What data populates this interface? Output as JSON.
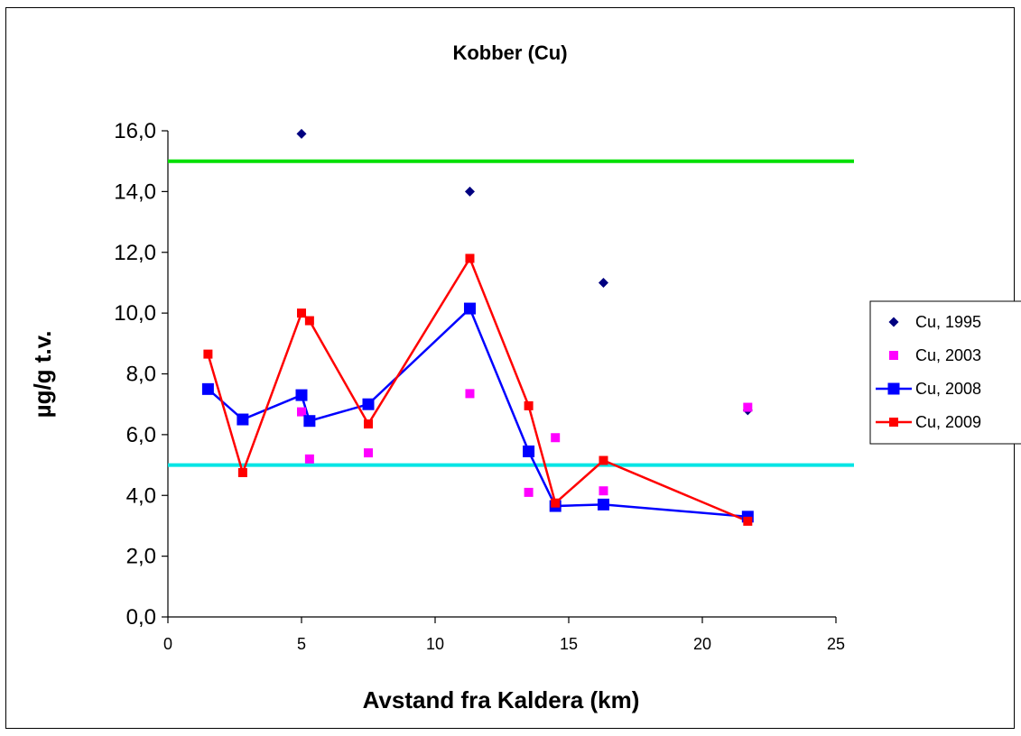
{
  "chart_data": {
    "type": "scatter",
    "title": "Kobber (Cu)",
    "xlabel": "Avstand fra Kaldera (km)",
    "ylabel": "µg/g t.v.",
    "xlim": [
      0,
      25
    ],
    "ylim": [
      0,
      16
    ],
    "x_ticks": [
      "0",
      "5",
      "10",
      "15",
      "20",
      "25"
    ],
    "y_ticks": [
      "0,0",
      "2,0",
      "4,0",
      "6,0",
      "8,0",
      "10,0",
      "12,0",
      "14,0",
      "16,0"
    ],
    "grid": false,
    "legend_position": "right",
    "reference_lines": [
      {
        "y": 15.0,
        "color": "#00e000"
      },
      {
        "y": 5.0,
        "color": "#00e5e5"
      }
    ],
    "series": [
      {
        "name": "Cu, 1995",
        "style": "markers",
        "marker": "diamond",
        "color": "#000080",
        "points": [
          [
            5.0,
            15.9
          ],
          [
            11.3,
            14.0
          ],
          [
            16.3,
            11.0
          ],
          [
            21.7,
            6.8
          ]
        ]
      },
      {
        "name": "Cu, 2003",
        "style": "markers",
        "marker": "square",
        "color": "#ff00ff",
        "points": [
          [
            5.0,
            6.75
          ],
          [
            5.3,
            5.2
          ],
          [
            7.5,
            5.4
          ],
          [
            11.3,
            7.35
          ],
          [
            13.5,
            4.1
          ],
          [
            14.5,
            5.9
          ],
          [
            16.3,
            4.15
          ],
          [
            21.7,
            6.9
          ]
        ]
      },
      {
        "name": "Cu, 2008",
        "style": "line+markers",
        "marker": "square",
        "color": "#0000ff",
        "points": [
          [
            1.5,
            7.5
          ],
          [
            2.8,
            6.5
          ],
          [
            5.0,
            7.3
          ],
          [
            5.3,
            6.45
          ],
          [
            7.5,
            7.0
          ],
          [
            11.3,
            10.15
          ],
          [
            13.5,
            5.45
          ],
          [
            14.5,
            3.65
          ],
          [
            16.3,
            3.7
          ],
          [
            21.7,
            3.3
          ]
        ]
      },
      {
        "name": "Cu, 2009",
        "style": "line+markers",
        "marker": "square",
        "color": "#ff0000",
        "points": [
          [
            1.5,
            8.65
          ],
          [
            2.8,
            4.75
          ],
          [
            5.0,
            10.0
          ],
          [
            5.3,
            9.75
          ],
          [
            7.5,
            6.35
          ],
          [
            11.3,
            11.8
          ],
          [
            13.5,
            6.95
          ],
          [
            14.5,
            3.75
          ],
          [
            16.3,
            5.15
          ],
          [
            21.7,
            3.15
          ]
        ]
      }
    ]
  },
  "legend": {
    "items": [
      "Cu, 1995",
      "Cu, 2003",
      "Cu, 2008",
      "Cu, 2009"
    ]
  }
}
